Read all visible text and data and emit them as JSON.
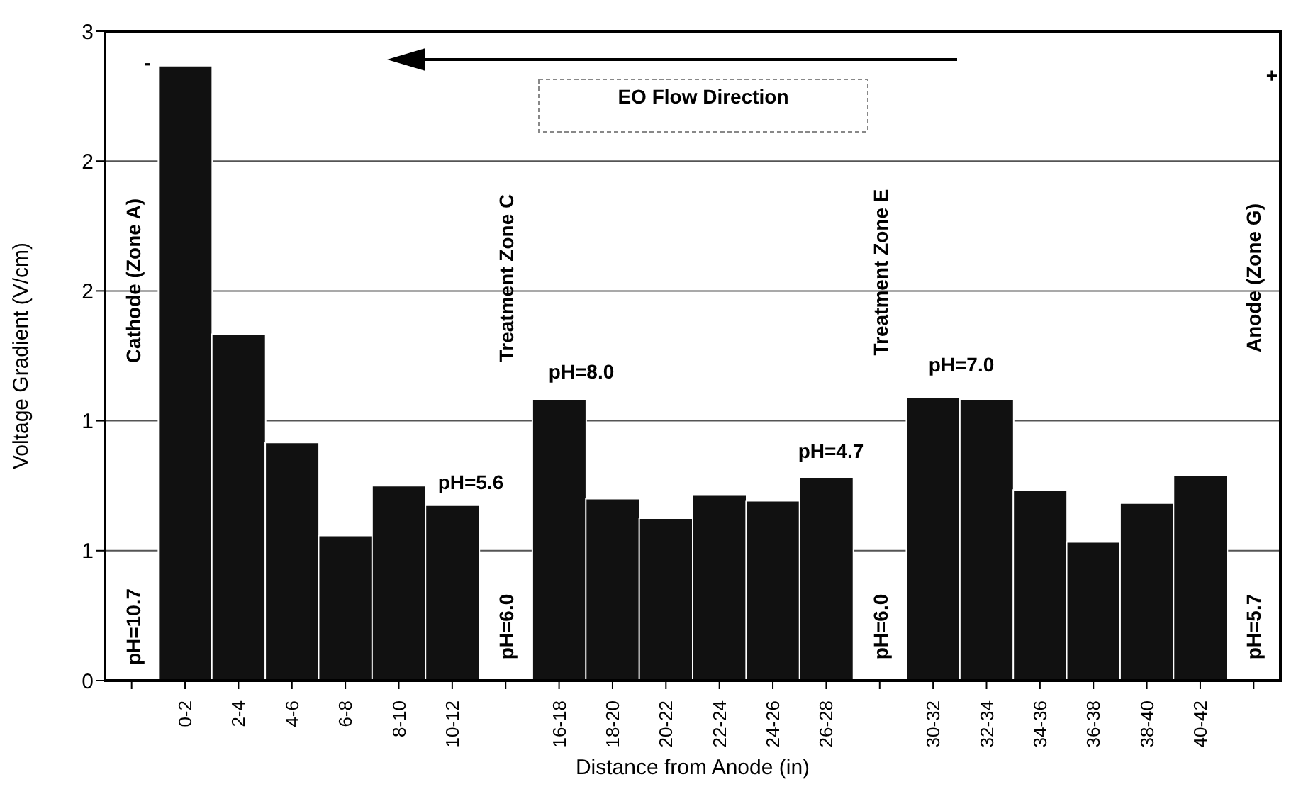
{
  "chart_data": {
    "type": "bar",
    "xlabel": "Distance from Anode (in)",
    "ylabel": "Voltage Gradient (V/cm)",
    "categories": [
      null,
      "0-2",
      "2-4",
      "4-6",
      "6-8",
      "8-10",
      "10-12",
      null,
      "16-18",
      "18-20",
      "20-22",
      "22-24",
      "24-26",
      "26-28",
      null,
      "30-32",
      "32-34",
      "34-36",
      "36-38",
      "38-40",
      "40-42",
      null
    ],
    "values": [
      null,
      2.84,
      1.6,
      1.1,
      0.67,
      0.9,
      0.81,
      null,
      1.3,
      0.84,
      0.75,
      0.86,
      0.83,
      0.94,
      null,
      1.31,
      1.3,
      0.88,
      0.64,
      0.82,
      0.95,
      null
    ],
    "color": "#111111",
    "ylim": [
      0,
      3
    ],
    "yticks": [
      0,
      {
        "value": 0.6,
        "label": "1"
      },
      {
        "value": 1.2,
        "label": "1"
      },
      {
        "value": 1.8,
        "label": "2"
      },
      {
        "value": 2.4,
        "label": "2"
      },
      3
    ],
    "grid": "y",
    "legend": false,
    "annotations": [
      "-",
      "Cathode (Zone A)",
      "pH=10.7",
      "EO Flow Direction",
      "Treatment Zone C",
      "pH=6.0",
      "pH=5.6",
      "pH=8.0",
      "pH=4.7",
      "Treatment Zone E",
      "pH=6.0",
      "pH=7.0",
      "Anode (Zone G)",
      "pH=5.7",
      "+"
    ]
  }
}
